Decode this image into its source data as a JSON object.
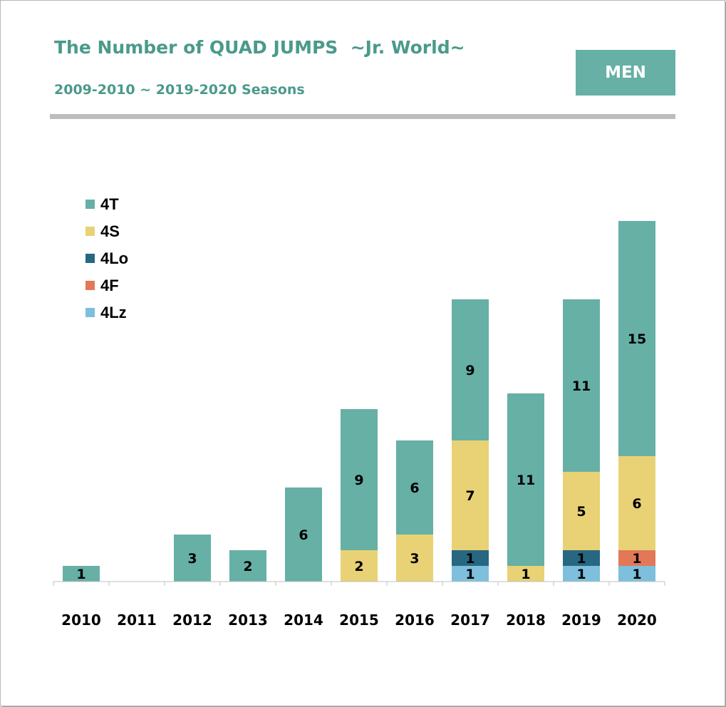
{
  "header": {
    "title": "The Number of QUAD JUMPS  ~Jr. World~",
    "subtitle": "2009-2010 ~ 2019-2020 Seasons",
    "badge": "MEN"
  },
  "chart_data": {
    "type": "bar",
    "stacked": true,
    "title": "The Number of QUAD JUMPS  ~Jr. World~",
    "subtitle": "2009-2010 ~ 2019-2020 Seasons",
    "xlabel": "",
    "ylabel": "",
    "ylim": [
      0,
      23
    ],
    "grid": false,
    "legend_position": "top-left",
    "categories": [
      "2010",
      "2011",
      "2012",
      "2013",
      "2014",
      "2015",
      "2016",
      "2017",
      "2018",
      "2019",
      "2020"
    ],
    "series": [
      {
        "name": "4Lz",
        "color": "#7dbfdc",
        "values": [
          0,
          0,
          0,
          0,
          0,
          0,
          0,
          1,
          0,
          1,
          1
        ]
      },
      {
        "name": "4F",
        "color": "#e27858",
        "values": [
          0,
          0,
          0,
          0,
          0,
          0,
          0,
          0,
          0,
          0,
          1
        ]
      },
      {
        "name": "4Lo",
        "color": "#276781",
        "values": [
          0,
          0,
          0,
          0,
          0,
          0,
          0,
          1,
          0,
          1,
          0
        ]
      },
      {
        "name": "4S",
        "color": "#e8d275",
        "values": [
          0,
          0,
          0,
          0,
          0,
          2,
          3,
          7,
          1,
          5,
          6
        ]
      },
      {
        "name": "4T",
        "color": "#66b0a6",
        "values": [
          1,
          0,
          3,
          2,
          6,
          9,
          6,
          9,
          11,
          11,
          15
        ]
      }
    ],
    "legend_order": [
      "4T",
      "4S",
      "4Lo",
      "4F",
      "4Lz"
    ]
  }
}
